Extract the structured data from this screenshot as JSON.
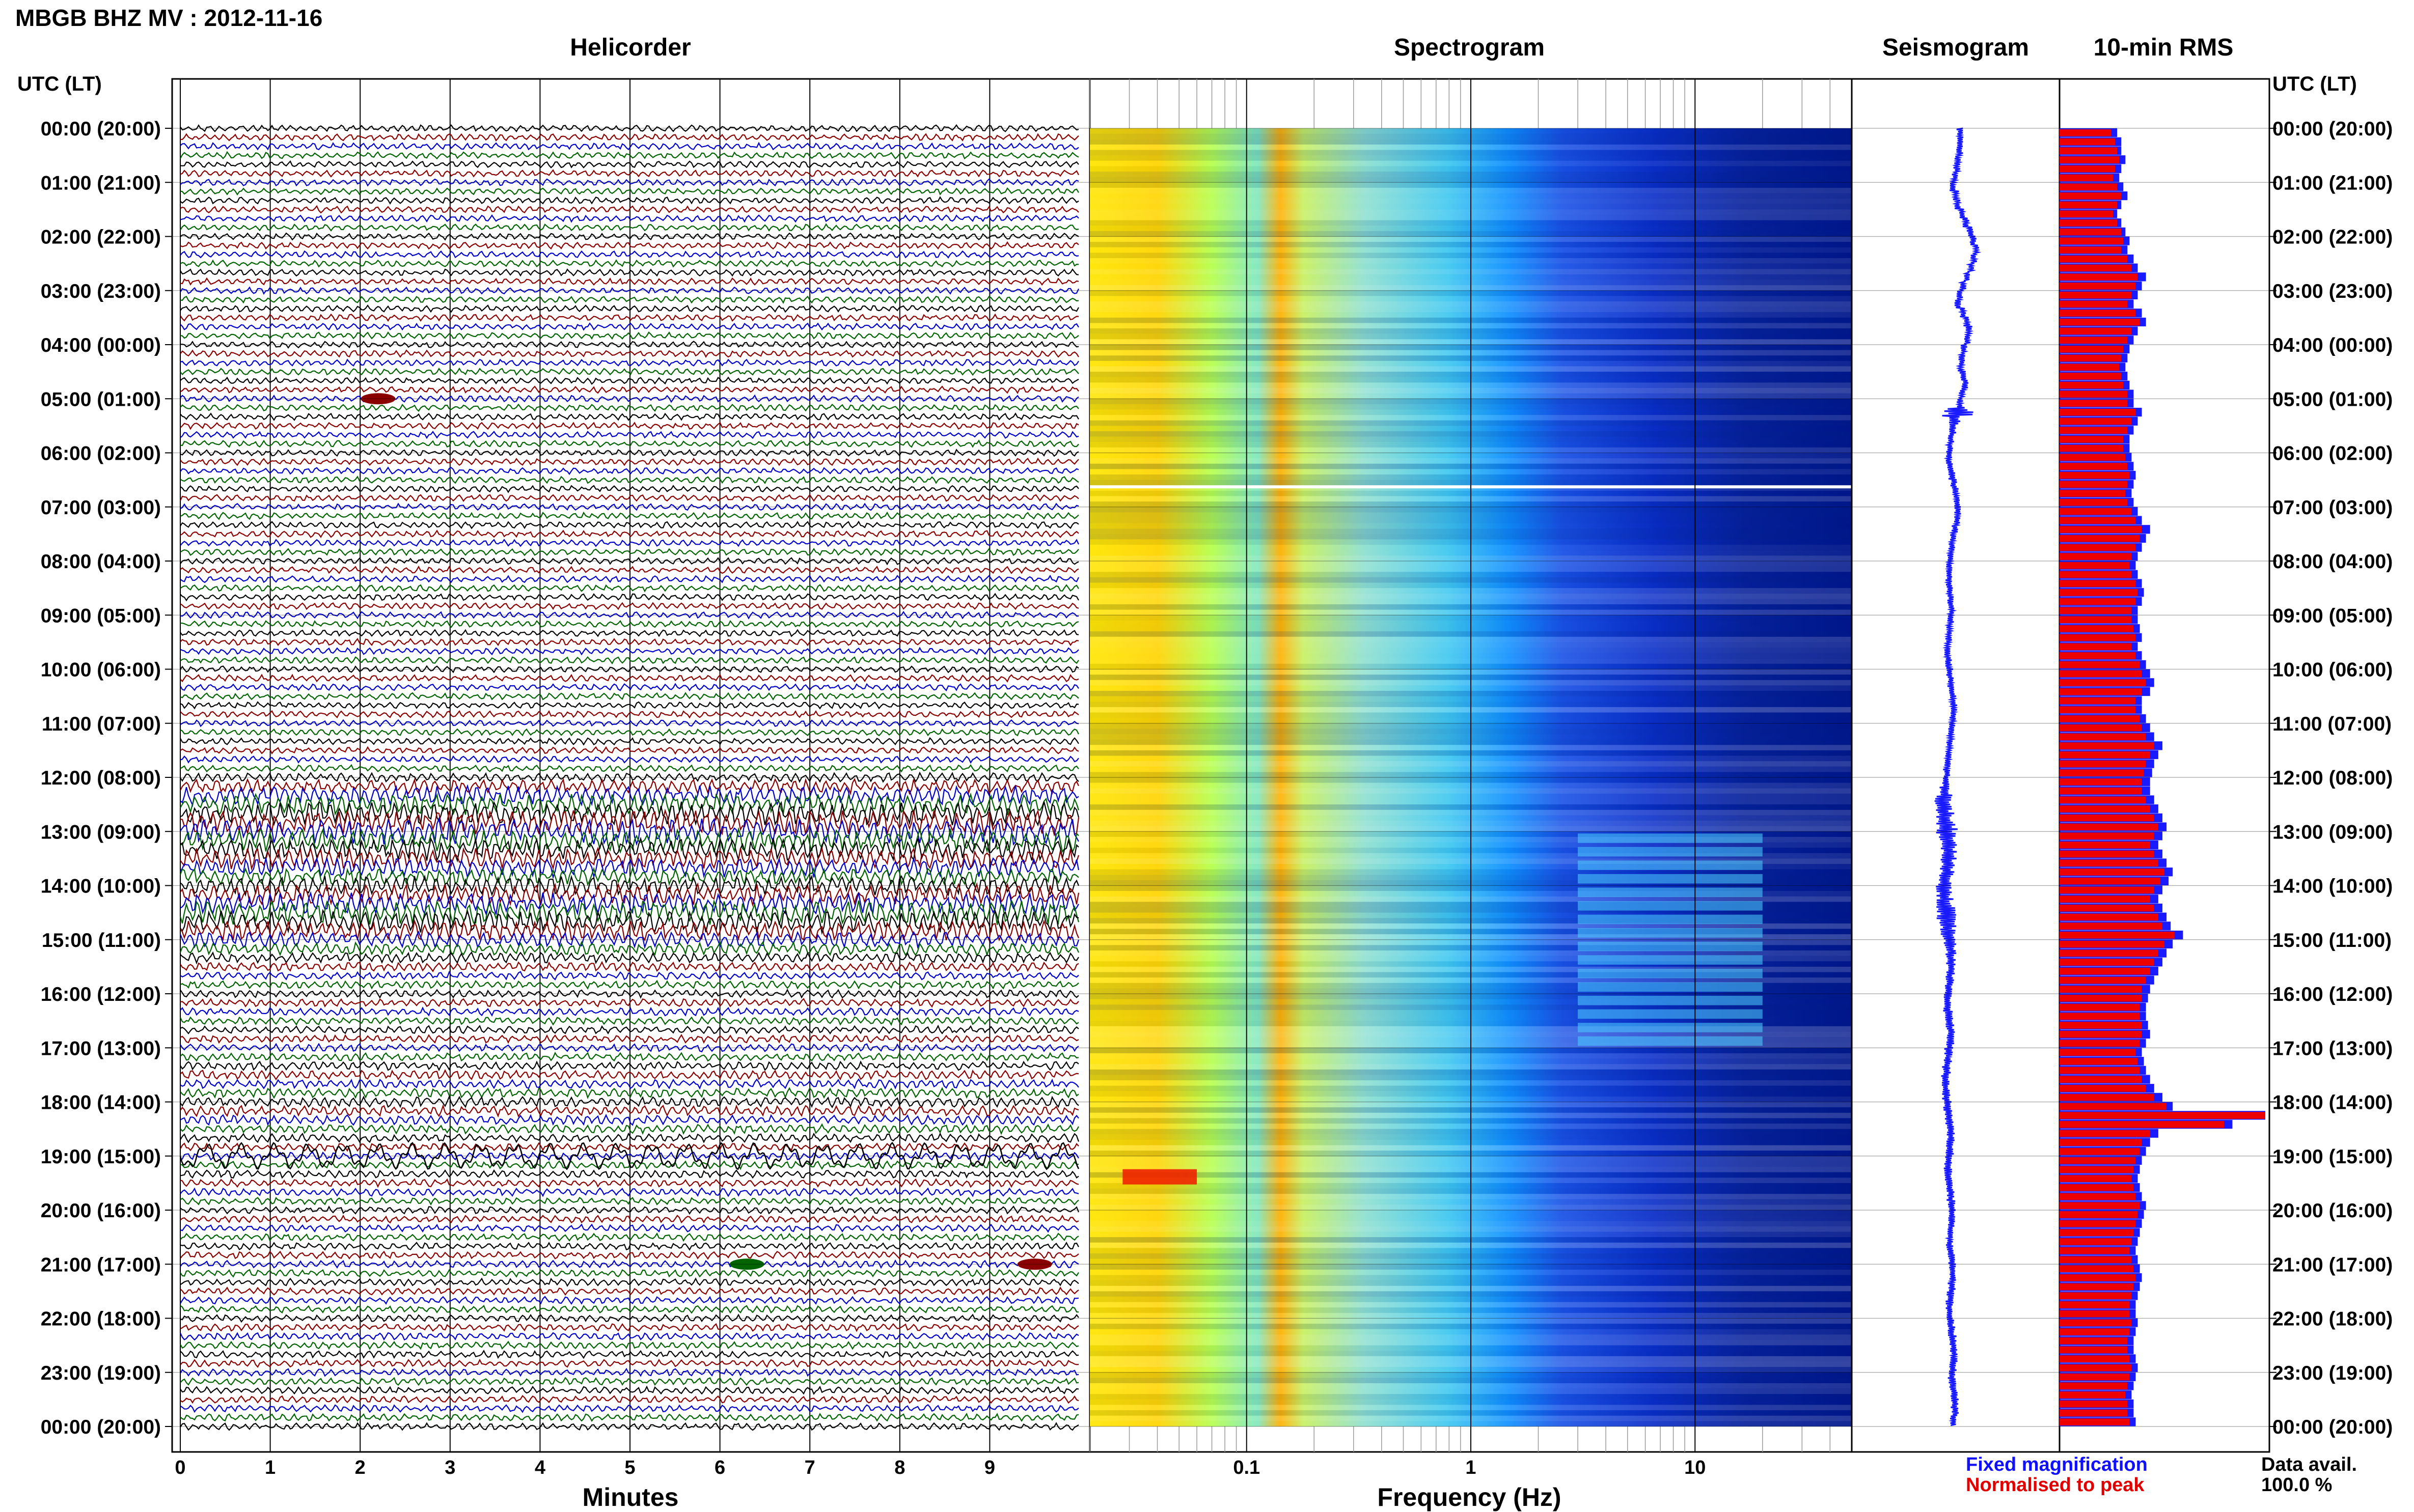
{
  "header": {
    "station": "MBGB BHZ MV : 2012-11-16",
    "utc_label": "UTC (LT)"
  },
  "panels": {
    "helicorder_title": "Helicorder",
    "spectrogram_title": "Spectrogram",
    "seismogram_title": "Seismogram",
    "rms_title": "10-min RMS",
    "helicorder_xlabel": "Minutes",
    "spectrogram_xlabel": "Frequency (Hz)"
  },
  "legend": {
    "fixed": "Fixed magnification",
    "normalised": "Normalised to peak"
  },
  "availability": {
    "label": "Data avail.",
    "value": "100.0 %"
  },
  "colors": {
    "trace_cycle": [
      "#000000",
      "#8b0000",
      "#0000cc",
      "#006400"
    ],
    "seismogram": "#1a1aff",
    "rms_fixed": "#1a1aff",
    "rms_normalised": "#ee0000",
    "spectrogram_scale": [
      "#00007a",
      "#0022cc",
      "#0066ff",
      "#00c8ff",
      "#7fff7f",
      "#ffff00",
      "#ff9900",
      "#ff0000"
    ]
  },
  "chart_data": [
    {
      "type": "line",
      "panel": "helicorder",
      "title": "Helicorder",
      "xlabel": "Minutes",
      "xlim": [
        0,
        10
      ],
      "xticks": [
        0,
        1,
        2,
        3,
        4,
        5,
        6,
        7,
        8,
        9
      ],
      "xtick_labels": [
        "0",
        "1",
        "2",
        "3",
        "4",
        "5",
        "6",
        "7",
        "8",
        "9"
      ],
      "rows_per_hour": 6,
      "total_rows": 144,
      "row_amplitude_scale": [
        1,
        1,
        1,
        1,
        1,
        1,
        1,
        1,
        1,
        1,
        1,
        1,
        1,
        1,
        1,
        1,
        1,
        1,
        1,
        1,
        1,
        1,
        1,
        1,
        1,
        1,
        1,
        1,
        1,
        1,
        1,
        1,
        1,
        1,
        1,
        1,
        1,
        1,
        1,
        1,
        1,
        1,
        1,
        1,
        1,
        1,
        1,
        1,
        1,
        1,
        1,
        1,
        1,
        1,
        1,
        1,
        1,
        1,
        1,
        1,
        1,
        1,
        1,
        1,
        1,
        1,
        1,
        1,
        1,
        1,
        1,
        1,
        1.4,
        2.2,
        3.0,
        3.2,
        3.6,
        3.8,
        4.0,
        3.6,
        3.4,
        3.2,
        3.0,
        2.6,
        3.0,
        3.2,
        3.4,
        3.8,
        3.4,
        3.0,
        2.4,
        2.0,
        1.6,
        1.4,
        1.2,
        1.2,
        1.2,
        1.2,
        1.2,
        1.2,
        1.2,
        1.2,
        1.2,
        1.2,
        1.3,
        1.4,
        1.4,
        1.5,
        1.6,
        1.6,
        1.5,
        1.4,
        1.3,
        1.2,
        1.2,
        1.2,
        1.2,
        1.2,
        1.2,
        1.1,
        1.1,
        1.1,
        1.1,
        1.1,
        1.1,
        1.1,
        1.1,
        1.1,
        1.1,
        1.1,
        1.1,
        1.1,
        1.1,
        1.1,
        1.1,
        1.1,
        1.1,
        1.1,
        1.1,
        1.1,
        1.1,
        1.1,
        1.1,
        1.1,
        1.1,
        1.1
      ],
      "events": [
        {
          "hour": 5,
          "minute": 2.2
        },
        {
          "hour": 19,
          "minute": 0
        },
        {
          "hour": 21,
          "minute": 9.5
        },
        {
          "hour": 21,
          "minute": 6.3
        }
      ]
    },
    {
      "type": "heatmap",
      "panel": "spectrogram",
      "title": "Spectrogram",
      "xlabel": "Frequency (Hz)",
      "xscale": "log",
      "xlim": [
        0.02,
        50
      ],
      "xticks": [
        0.1,
        1,
        10
      ],
      "xtick_labels": [
        "0.1",
        "1",
        "10"
      ],
      "ylim_hours": [
        0,
        24
      ],
      "gap_hour": 6.6,
      "peak_band_hz": 0.18,
      "active_band_hz": [
        3,
        20
      ],
      "active_hours": [
        13,
        17
      ],
      "low_freq_event_hour": 19.3
    },
    {
      "type": "line",
      "panel": "seismogram",
      "title": "Seismogram",
      "ylim_hours": [
        0,
        24
      ],
      "offset_profile": [
        0,
        0,
        0,
        -4,
        -6,
        -10,
        -14,
        -8,
        -4,
        4,
        12,
        20,
        26,
        32,
        28,
        22,
        14,
        6,
        0,
        -4,
        6,
        14,
        18,
        14,
        8,
        4,
        2,
        6,
        10,
        4,
        0,
        -6,
        -10,
        -14,
        -18,
        -20,
        -22,
        -20,
        -16,
        -12,
        -8,
        -6,
        -4,
        -6,
        -10,
        -14,
        -16,
        -18,
        -20,
        -20,
        -22,
        -20,
        -18,
        -16,
        -18,
        -20,
        -22,
        -24,
        -24,
        -22,
        -20,
        -18,
        -16,
        -14,
        -12,
        -14,
        -16,
        -18,
        -20,
        -22,
        -24,
        -26,
        -28,
        -30,
        -32,
        -32,
        -30,
        -28,
        -26,
        -24,
        -22,
        -24,
        -26,
        -28,
        -30,
        -30,
        -28,
        -26,
        -24,
        -22,
        -20,
        -18,
        -18,
        -18,
        -20,
        -22,
        -24,
        -24,
        -22,
        -20,
        -18,
        -20,
        -22,
        -24,
        -26,
        -28,
        -28,
        -26,
        -24,
        -22,
        -20,
        -18,
        -18,
        -20,
        -22,
        -24,
        -22,
        -20,
        -18,
        -16,
        -16,
        -16,
        -18,
        -20,
        -18,
        -16,
        -14,
        -14,
        -16,
        -18,
        -20,
        -20,
        -18,
        -16,
        -14,
        -12,
        -12,
        -14,
        -16,
        -14,
        -12,
        -10,
        -10,
        -12
      ],
      "amplitude": [
        6,
        6,
        6,
        6,
        6,
        6,
        6,
        6,
        6,
        6,
        6,
        6,
        6,
        6,
        6,
        6,
        6,
        6,
        6,
        6,
        6,
        6,
        6,
        6,
        6,
        6,
        6,
        6,
        6,
        6,
        6,
        30,
        10,
        6,
        6,
        6,
        6,
        6,
        6,
        6,
        6,
        6,
        6,
        6,
        6,
        6,
        6,
        6,
        6,
        6,
        6,
        6,
        6,
        6,
        6,
        6,
        6,
        6,
        6,
        6,
        6,
        6,
        6,
        6,
        6,
        6,
        6,
        6,
        6,
        6,
        6,
        6,
        8,
        12,
        16,
        16,
        18,
        22,
        20,
        18,
        16,
        16,
        14,
        14,
        16,
        16,
        18,
        18,
        16,
        14,
        12,
        10,
        9,
        8,
        8,
        8,
        8,
        8,
        8,
        8,
        8,
        8,
        8,
        8,
        8,
        8,
        8,
        8,
        8,
        8,
        8,
        8,
        8,
        8,
        8,
        8,
        7,
        7,
        7,
        7,
        7,
        7,
        7,
        7,
        7,
        7,
        7,
        7,
        7,
        7,
        7,
        7,
        7,
        7,
        7,
        7,
        7,
        7,
        7,
        7,
        7,
        7,
        7,
        7,
        7,
        7
      ]
    },
    {
      "type": "bar",
      "panel": "rms",
      "title": "10-min RMS",
      "orientation": "horizontal",
      "bins_per_hour": 6,
      "fixed_magnification": [
        0.28,
        0.3,
        0.3,
        0.32,
        0.3,
        0.29,
        0.31,
        0.33,
        0.3,
        0.28,
        0.3,
        0.32,
        0.34,
        0.33,
        0.36,
        0.38,
        0.42,
        0.4,
        0.38,
        0.36,
        0.4,
        0.42,
        0.38,
        0.36,
        0.34,
        0.33,
        0.32,
        0.33,
        0.34,
        0.36,
        0.36,
        0.4,
        0.38,
        0.36,
        0.34,
        0.34,
        0.35,
        0.36,
        0.37,
        0.36,
        0.35,
        0.36,
        0.38,
        0.4,
        0.44,
        0.42,
        0.4,
        0.38,
        0.37,
        0.38,
        0.4,
        0.41,
        0.4,
        0.38,
        0.38,
        0.39,
        0.4,
        0.38,
        0.4,
        0.42,
        0.44,
        0.46,
        0.44,
        0.4,
        0.4,
        0.42,
        0.44,
        0.46,
        0.5,
        0.48,
        0.46,
        0.45,
        0.44,
        0.44,
        0.46,
        0.48,
        0.5,
        0.52,
        0.5,
        0.48,
        0.5,
        0.52,
        0.55,
        0.53,
        0.5,
        0.48,
        0.5,
        0.52,
        0.54,
        0.6,
        0.55,
        0.52,
        0.5,
        0.48,
        0.46,
        0.44,
        0.43,
        0.42,
        0.42,
        0.43,
        0.44,
        0.42,
        0.4,
        0.41,
        0.42,
        0.44,
        0.46,
        0.5,
        0.55,
        1.0,
        0.84,
        0.48,
        0.44,
        0.42,
        0.4,
        0.39,
        0.38,
        0.39,
        0.4,
        0.42,
        0.41,
        0.4,
        0.39,
        0.38,
        0.37,
        0.38,
        0.39,
        0.4,
        0.39,
        0.38,
        0.37,
        0.37,
        0.38,
        0.37,
        0.36,
        0.36,
        0.37,
        0.38,
        0.37,
        0.36,
        0.35,
        0.36,
        0.36,
        0.37
      ],
      "normalised_to_peak": [
        0.25,
        0.27,
        0.28,
        0.29,
        0.27,
        0.26,
        0.28,
        0.3,
        0.28,
        0.26,
        0.28,
        0.3,
        0.31,
        0.3,
        0.33,
        0.35,
        0.38,
        0.37,
        0.35,
        0.33,
        0.37,
        0.39,
        0.35,
        0.33,
        0.31,
        0.3,
        0.29,
        0.3,
        0.31,
        0.33,
        0.33,
        0.37,
        0.35,
        0.33,
        0.31,
        0.31,
        0.32,
        0.33,
        0.34,
        0.33,
        0.32,
        0.33,
        0.35,
        0.37,
        0.4,
        0.39,
        0.37,
        0.35,
        0.34,
        0.35,
        0.37,
        0.38,
        0.37,
        0.35,
        0.35,
        0.36,
        0.37,
        0.35,
        0.37,
        0.39,
        0.4,
        0.42,
        0.4,
        0.37,
        0.37,
        0.39,
        0.4,
        0.42,
        0.46,
        0.44,
        0.42,
        0.41,
        0.4,
        0.4,
        0.42,
        0.44,
        0.46,
        0.48,
        0.46,
        0.44,
        0.46,
        0.48,
        0.51,
        0.49,
        0.46,
        0.44,
        0.46,
        0.48,
        0.5,
        0.56,
        0.51,
        0.48,
        0.46,
        0.44,
        0.42,
        0.4,
        0.4,
        0.39,
        0.39,
        0.4,
        0.4,
        0.39,
        0.37,
        0.38,
        0.39,
        0.4,
        0.42,
        0.46,
        0.52,
        1.0,
        0.8,
        0.44,
        0.4,
        0.39,
        0.37,
        0.36,
        0.35,
        0.36,
        0.37,
        0.39,
        0.38,
        0.37,
        0.36,
        0.35,
        0.34,
        0.35,
        0.36,
        0.37,
        0.36,
        0.35,
        0.34,
        0.34,
        0.35,
        0.34,
        0.33,
        0.33,
        0.34,
        0.35,
        0.34,
        0.33,
        0.32,
        0.33,
        0.33,
        0.34
      ]
    },
    {
      "type": "table",
      "panel": "time_axis",
      "hour_labels": [
        "00:00 (20:00)",
        "01:00 (21:00)",
        "02:00 (22:00)",
        "03:00 (23:00)",
        "04:00 (00:00)",
        "05:00 (01:00)",
        "06:00 (02:00)",
        "07:00 (03:00)",
        "08:00 (04:00)",
        "09:00 (05:00)",
        "10:00 (06:00)",
        "11:00 (07:00)",
        "12:00 (08:00)",
        "13:00 (09:00)",
        "14:00 (10:00)",
        "15:00 (11:00)",
        "16:00 (12:00)",
        "17:00 (13:00)",
        "18:00 (14:00)",
        "19:00 (15:00)",
        "20:00 (16:00)",
        "21:00 (17:00)",
        "22:00 (18:00)",
        "23:00 (19:00)",
        "00:00 (20:00)"
      ]
    }
  ]
}
